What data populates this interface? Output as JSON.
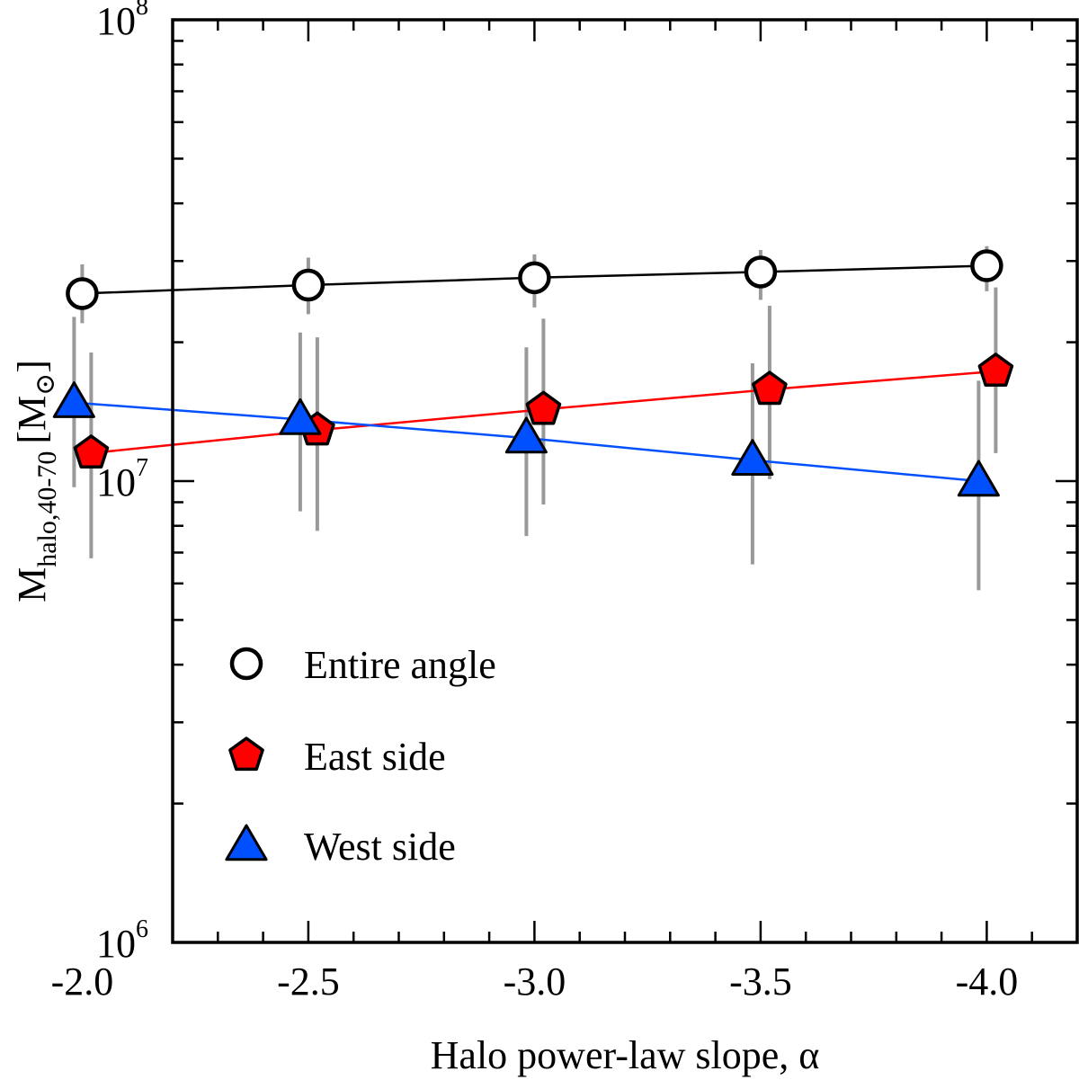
{
  "chart_data": {
    "type": "scatter",
    "xlabel": "Halo power-law slope, α",
    "ylabel": {
      "main": "M",
      "subscript": "halo,40-70",
      "unit_open": "[M",
      "unit_symbol": "⊙",
      "unit_close": "]"
    },
    "y_scale": "log",
    "xlim": [
      -2.2,
      -4.2
    ],
    "ylim": [
      1000000,
      100000000
    ],
    "x_ticks": [
      -2.0,
      -2.5,
      -3.0,
      -3.5,
      -4.0
    ],
    "x_tick_labels": [
      "-2.0",
      "-2.5",
      "-3.0",
      "-3.5",
      "-4.0"
    ],
    "y_major_ticks": [
      {
        "value": 1000000,
        "base": "10",
        "exp": "6"
      },
      {
        "value": 10000000,
        "base": "10",
        "exp": "7"
      },
      {
        "value": 100000000,
        "base": "10",
        "exp": "8"
      }
    ],
    "grid": false,
    "legend_position": "lower-left",
    "series": [
      {
        "name": "Entire angle",
        "marker": "circle",
        "fill": "#ffffff",
        "line_color": "#000000",
        "points": [
          {
            "x": -2.0,
            "y": 25500000,
            "ylow": 22000000,
            "yhigh": 29500000
          },
          {
            "x": -2.5,
            "y": 26600000,
            "ylow": 23000000,
            "yhigh": 30500000
          },
          {
            "x": -3.0,
            "y": 27600000,
            "ylow": 23800000,
            "yhigh": 31000000
          },
          {
            "x": -3.5,
            "y": 28400000,
            "ylow": 24700000,
            "yhigh": 31700000
          },
          {
            "x": -4.0,
            "y": 29300000,
            "ylow": 25800000,
            "yhigh": 32300000
          }
        ]
      },
      {
        "name": "East side",
        "marker": "pentagon",
        "fill": "#ff0000",
        "line_color": "#ff0000",
        "points": [
          {
            "x": -2.0,
            "y": 11500000,
            "ylow": 6800000,
            "yhigh": 19000000
          },
          {
            "x": -2.5,
            "y": 12900000,
            "ylow": 7800000,
            "yhigh": 20500000
          },
          {
            "x": -3.0,
            "y": 14300000,
            "ylow": 8900000,
            "yhigh": 22500000
          },
          {
            "x": -3.5,
            "y": 15800000,
            "ylow": 10100000,
            "yhigh": 24000000
          },
          {
            "x": -4.0,
            "y": 17300000,
            "ylow": 11500000,
            "yhigh": 26300000
          }
        ]
      },
      {
        "name": "West side",
        "marker": "triangle",
        "fill": "#0050ff",
        "line_color": "#0050ff",
        "points": [
          {
            "x": -2.0,
            "y": 14800000,
            "ylow": 9700000,
            "yhigh": 22700000
          },
          {
            "x": -2.5,
            "y": 13600000,
            "ylow": 8600000,
            "yhigh": 21000000
          },
          {
            "x": -3.0,
            "y": 12400000,
            "ylow": 7600000,
            "yhigh": 19500000
          },
          {
            "x": -3.5,
            "y": 11100000,
            "ylow": 6600000,
            "yhigh": 18000000
          },
          {
            "x": -4.0,
            "y": 10000000,
            "ylow": 5800000,
            "yhigh": 16500000
          }
        ]
      }
    ]
  }
}
